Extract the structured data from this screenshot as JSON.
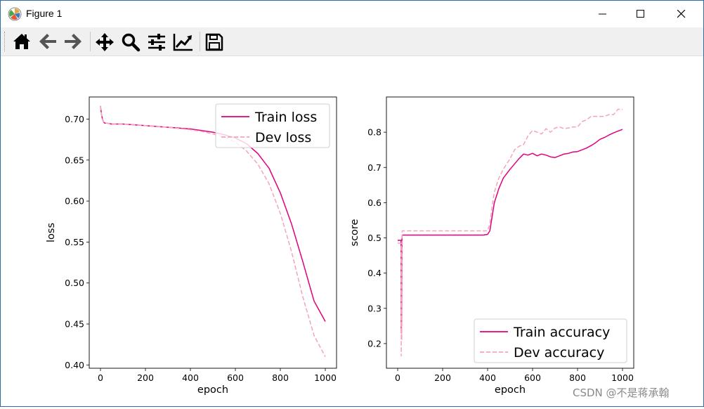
{
  "window": {
    "title": "Figure 1",
    "title_icon": "matplotlib-logo-icon",
    "controls": [
      "minimize-icon",
      "maximize-icon",
      "close-icon"
    ]
  },
  "toolbar": {
    "buttons": [
      {
        "name": "home",
        "icon": "home-icon"
      },
      {
        "name": "back",
        "icon": "arrow-left-icon"
      },
      {
        "name": "forward",
        "icon": "arrow-right-icon"
      },
      {
        "name": "pan",
        "icon": "move-icon"
      },
      {
        "name": "zoom",
        "icon": "magnifier-icon"
      },
      {
        "name": "configure-subplots",
        "icon": "sliders-icon"
      },
      {
        "name": "edit-axis",
        "icon": "chart-line-icon"
      },
      {
        "name": "save",
        "icon": "floppy-disk-icon"
      }
    ]
  },
  "watermark": "CSDN @不是蒋承翰",
  "colors": {
    "train": "#e0007f",
    "dev": "#f4a3bd"
  },
  "chart_data": [
    {
      "type": "line",
      "xlabel": "epoch",
      "ylabel": "loss",
      "xlim": [
        -50,
        1050
      ],
      "ylim": [
        0.396,
        0.727
      ],
      "xticks": [
        0,
        200,
        400,
        600,
        800,
        1000
      ],
      "yticks": [
        0.4,
        0.45,
        0.5,
        0.55,
        0.6,
        0.65,
        0.7
      ],
      "legend": "upper right",
      "grid": false,
      "series": [
        {
          "name": "Train loss",
          "style": "solid",
          "x": [
            0,
            5,
            10,
            15,
            20,
            30,
            50,
            100,
            200,
            300,
            400,
            450,
            500,
            550,
            600,
            650,
            700,
            750,
            800,
            850,
            900,
            950,
            1000
          ],
          "y": [
            0.716,
            0.705,
            0.699,
            0.696,
            0.695,
            0.695,
            0.694,
            0.694,
            0.692,
            0.69,
            0.688,
            0.686,
            0.684,
            0.681,
            0.677,
            0.67,
            0.658,
            0.64,
            0.61,
            0.572,
            0.526,
            0.478,
            0.453
          ]
        },
        {
          "name": "Dev loss",
          "style": "dashed",
          "x": [
            0,
            5,
            10,
            15,
            20,
            30,
            50,
            100,
            200,
            300,
            400,
            450,
            500,
            550,
            600,
            650,
            700,
            750,
            800,
            850,
            900,
            950,
            1000
          ],
          "y": [
            0.716,
            0.705,
            0.699,
            0.696,
            0.695,
            0.695,
            0.694,
            0.694,
            0.692,
            0.69,
            0.687,
            0.685,
            0.682,
            0.678,
            0.672,
            0.661,
            0.645,
            0.621,
            0.585,
            0.538,
            0.483,
            0.436,
            0.41
          ]
        }
      ]
    },
    {
      "type": "line",
      "xlabel": "epoch",
      "ylabel": "score",
      "xlim": [
        -50,
        1050
      ],
      "ylim": [
        0.13,
        0.9
      ],
      "xticks": [
        0,
        200,
        400,
        600,
        800,
        1000
      ],
      "yticks": [
        0.2,
        0.3,
        0.4,
        0.5,
        0.6,
        0.7,
        0.8
      ],
      "legend": "lower right",
      "grid": false,
      "series": [
        {
          "name": "Train accuracy",
          "style": "solid",
          "x": [
            0,
            15,
            16,
            17,
            18,
            19,
            20,
            30,
            100,
            200,
            300,
            380,
            400,
            410,
            420,
            430,
            450,
            470,
            500,
            520,
            540,
            560,
            580,
            600,
            620,
            640,
            660,
            680,
            700,
            720,
            740,
            760,
            780,
            800,
            820,
            840,
            860,
            880,
            900,
            920,
            940,
            960,
            980,
            1000
          ],
          "y": [
            0.493,
            0.493,
            0.23,
            0.49,
            0.25,
            0.5,
            0.508,
            0.508,
            0.508,
            0.508,
            0.508,
            0.508,
            0.51,
            0.52,
            0.56,
            0.6,
            0.64,
            0.67,
            0.695,
            0.71,
            0.725,
            0.738,
            0.735,
            0.74,
            0.733,
            0.738,
            0.735,
            0.73,
            0.728,
            0.733,
            0.738,
            0.74,
            0.744,
            0.745,
            0.75,
            0.755,
            0.762,
            0.77,
            0.78,
            0.785,
            0.792,
            0.798,
            0.803,
            0.808
          ]
        },
        {
          "name": "Dev accuracy",
          "style": "dashed",
          "x": [
            0,
            15,
            16,
            17,
            18,
            19,
            20,
            30,
            100,
            200,
            300,
            380,
            400,
            410,
            420,
            430,
            450,
            470,
            500,
            520,
            540,
            560,
            580,
            600,
            620,
            640,
            660,
            680,
            700,
            720,
            740,
            760,
            780,
            800,
            820,
            840,
            860,
            880,
            900,
            920,
            940,
            960,
            980,
            1000
          ],
          "y": [
            0.485,
            0.485,
            0.165,
            0.48,
            0.21,
            0.5,
            0.52,
            0.52,
            0.52,
            0.52,
            0.52,
            0.52,
            0.52,
            0.54,
            0.59,
            0.63,
            0.67,
            0.695,
            0.725,
            0.75,
            0.76,
            0.765,
            0.79,
            0.805,
            0.8,
            0.795,
            0.81,
            0.8,
            0.812,
            0.815,
            0.81,
            0.812,
            0.815,
            0.815,
            0.83,
            0.835,
            0.845,
            0.845,
            0.845,
            0.845,
            0.85,
            0.85,
            0.865,
            0.865
          ]
        }
      ]
    }
  ]
}
